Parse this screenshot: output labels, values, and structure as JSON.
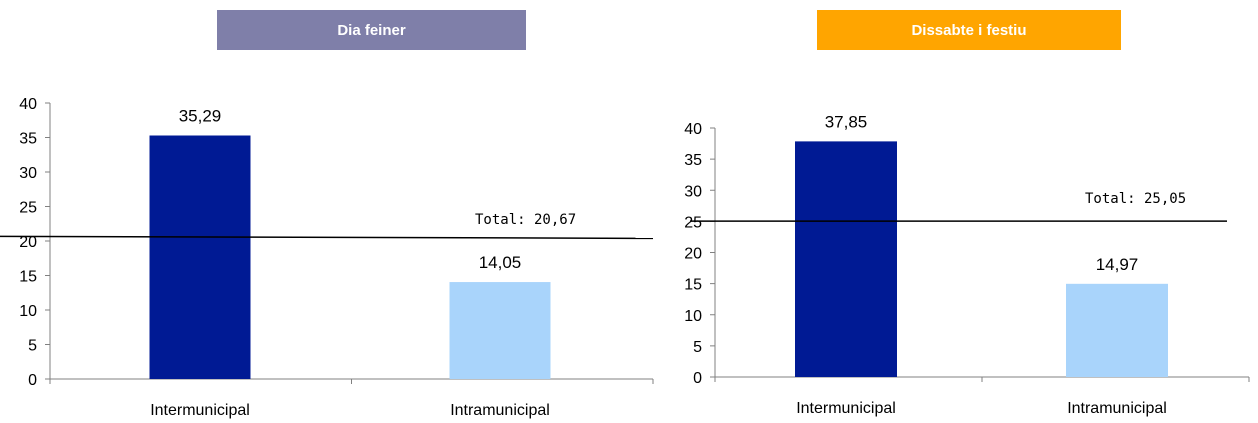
{
  "colors": {
    "banner_left": "#7f7fa9",
    "banner_right": "#ffa500",
    "bar_dark": "#001a94",
    "bar_light": "#a9d4fb",
    "line": "#000000"
  },
  "chart_data": [
    {
      "type": "bar",
      "title": "Dia feiner",
      "categories": [
        "Intermunicipal",
        "Intramunicipal"
      ],
      "values": [
        35.29,
        14.05
      ],
      "value_labels": [
        "35,29",
        "14,05"
      ],
      "ylim": [
        0,
        40
      ],
      "yticks": [
        "0",
        "5",
        "10",
        "15",
        "20",
        "25",
        "30",
        "35",
        "40"
      ],
      "reference_line": {
        "value": 20.67,
        "label": "Total: 20,67"
      },
      "grid": false,
      "legend": "none"
    },
    {
      "type": "bar",
      "title": "Dissabte i festiu",
      "categories": [
        "Intermunicipal",
        "Intramunicipal"
      ],
      "values": [
        37.85,
        14.97
      ],
      "value_labels": [
        "37,85",
        "14,97"
      ],
      "ylim": [
        0,
        40
      ],
      "yticks": [
        "0",
        "5",
        "10",
        "15",
        "20",
        "25",
        "30",
        "35",
        "40"
      ],
      "reference_line": {
        "value": 25.05,
        "label": "Total: 25,05"
      },
      "grid": false,
      "legend": "none"
    }
  ]
}
